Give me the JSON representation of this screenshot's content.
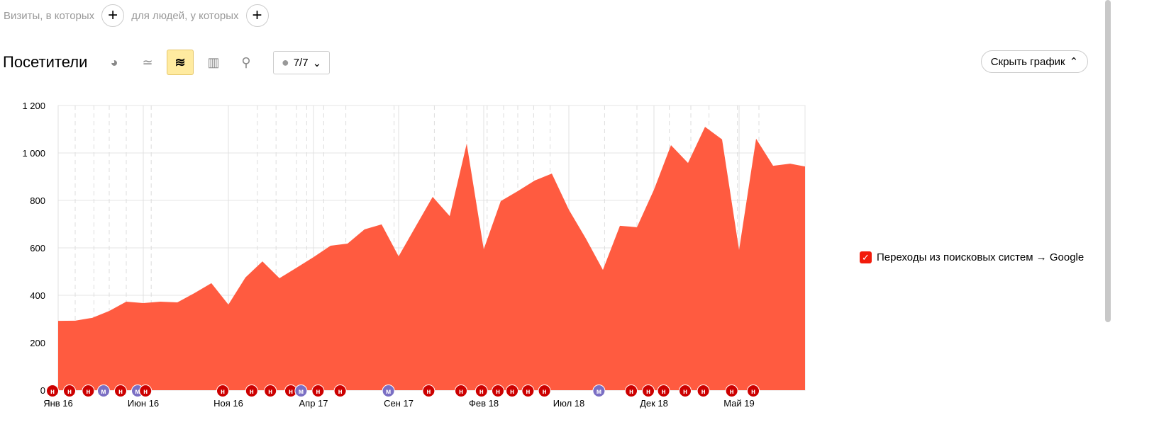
{
  "segment": {
    "visits_label": "Визиты, в которых",
    "people_label": "для людей, у которых"
  },
  "header": {
    "title": "Посетители",
    "notes_count": "7/7",
    "hide_chart": "Скрыть график",
    "chart_types": [
      "pie-chart-icon",
      "line-chart-icon",
      "stacked-area-chart-icon",
      "bar-chart-icon",
      "map-icon"
    ],
    "active_type": "stacked-area-chart-icon"
  },
  "colors": {
    "area": "#ff5b40",
    "note_h": "#cc0000",
    "note_m": "#7b6fc4",
    "checkbox": "#f21b0b"
  },
  "chart_data": {
    "type": "area",
    "ylim": [
      0,
      1200
    ],
    "yticks": [
      0,
      200,
      400,
      600,
      800,
      1000,
      1200
    ],
    "ytick_labels": [
      "0",
      "200",
      "400",
      "600",
      "800",
      "1 000",
      "1 200"
    ],
    "xtick_labels": [
      {
        "month": "2016-01",
        "label": "Янв 16"
      },
      {
        "month": "2016-06",
        "label": "Июн 16"
      },
      {
        "month": "2016-11",
        "label": "Ноя 16"
      },
      {
        "month": "2017-04",
        "label": "Апр 17"
      },
      {
        "month": "2017-09",
        "label": "Сен 17"
      },
      {
        "month": "2018-02",
        "label": "Фев 18"
      },
      {
        "month": "2018-07",
        "label": "Июл 18"
      },
      {
        "month": "2018-12",
        "label": "Дек 18"
      },
      {
        "month": "2019-05",
        "label": "Май 19"
      }
    ],
    "x_start": "2016-01",
    "x_end": "2019-09",
    "grid": true,
    "legend_position": "right",
    "series": [
      {
        "name": "Переходы из поисковых систем → Google",
        "checked": true,
        "values": [
          292,
          293,
          305,
          334,
          373,
          367,
          373,
          370,
          409,
          451,
          361,
          475,
          543,
          472,
          516,
          561,
          609,
          618,
          678,
          699,
          564,
          690,
          815,
          734,
          1039,
          594,
          797,
          839,
          884,
          913,
          761,
          639,
          507,
          693,
          687,
          845,
          1033,
          958,
          1110,
          1057,
          591,
          1060,
          946,
          955,
          943
        ]
      }
    ],
    "annotations": [
      {
        "date": "2016-01-01",
        "type": "н"
      },
      {
        "date": "2016-02-01",
        "type": "н"
      },
      {
        "date": "2016-03-04",
        "type": "н"
      },
      {
        "date": "2016-04-01",
        "type": "м"
      },
      {
        "date": "2016-05-01",
        "type": "н"
      },
      {
        "date": "2016-06-01",
        "type": "м"
      },
      {
        "date": "2016-06-15",
        "type": "н"
      },
      {
        "date": "2016-11-01",
        "type": "н"
      },
      {
        "date": "2016-12-22",
        "type": "н"
      },
      {
        "date": "2017-01-25",
        "type": "н"
      },
      {
        "date": "2017-03-01",
        "type": "н"
      },
      {
        "date": "2017-03-19",
        "type": "м"
      },
      {
        "date": "2017-04-19",
        "type": "н"
      },
      {
        "date": "2017-05-28",
        "type": "н"
      },
      {
        "date": "2017-08-23",
        "type": "м"
      },
      {
        "date": "2017-11-04",
        "type": "н"
      },
      {
        "date": "2018-01-01",
        "type": "н"
      },
      {
        "date": "2018-02-07",
        "type": "н"
      },
      {
        "date": "2018-03-06",
        "type": "н"
      },
      {
        "date": "2018-04-01",
        "type": "н"
      },
      {
        "date": "2018-04-29",
        "type": "н"
      },
      {
        "date": "2018-05-28",
        "type": "н"
      },
      {
        "date": "2018-09-04",
        "type": "м"
      },
      {
        "date": "2018-11-01",
        "type": "н"
      },
      {
        "date": "2018-12-01",
        "type": "н"
      },
      {
        "date": "2018-12-28",
        "type": "н"
      },
      {
        "date": "2019-02-06",
        "type": "н"
      },
      {
        "date": "2019-03-08",
        "type": "н"
      },
      {
        "date": "2019-04-28",
        "type": "н"
      },
      {
        "date": "2019-06-06",
        "type": "н"
      }
    ]
  }
}
